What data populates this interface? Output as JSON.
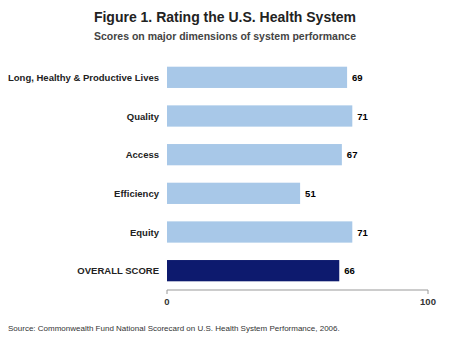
{
  "chart_data": {
    "type": "bar",
    "orientation": "horizontal",
    "title": "Figure 1. Rating the U.S. Health System",
    "subtitle": "Scores on major dimensions of system performance",
    "annotation": "Source: Commonwealth Fund National Scorecard on U.S. Health System Performance, 2006.",
    "categories": [
      "OVERALL SCORE",
      "Equity",
      "Efficiency",
      "Access",
      "Quality",
      "Long, Healthy & Productive Lives"
    ],
    "values": [
      66,
      71,
      51,
      67,
      71,
      69
    ],
    "colors": [
      "#0d1a6e",
      "#a8c8e8",
      "#a8c8e8",
      "#a8c8e8",
      "#a8c8e8",
      "#a8c8e8"
    ],
    "xlim": [
      0,
      100
    ],
    "xticks": [
      0,
      100
    ],
    "data_labels": true,
    "grid": false
  }
}
